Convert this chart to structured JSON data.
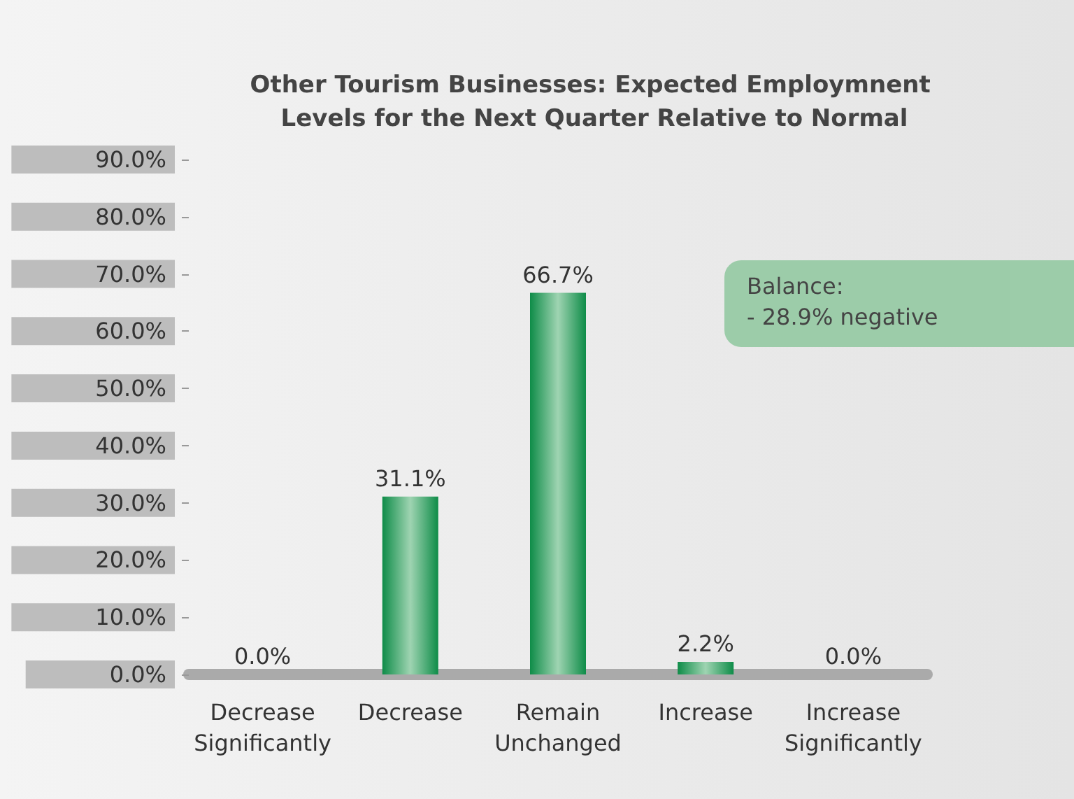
{
  "chart_data": {
    "type": "bar",
    "title": "Other Tourism Businesses: Expected Employmnent Levels for the Next Quarter Relative to Normal",
    "categories": [
      "Decrease Significantly",
      "Decrease",
      "Remain Unchanged",
      "Increase",
      "Increase Significantly"
    ],
    "values": [
      0,
      31.1,
      66.7,
      2.2,
      0
    ],
    "value_labels": [
      "0.0%",
      "31.1%",
      "66.7%",
      "2.2%",
      "0.0%"
    ],
    "color": "#0e8c48",
    "ylim": [
      0,
      90
    ],
    "yticks": [
      {
        "value": 0,
        "label": "0.0%"
      },
      {
        "value": 10,
        "label": "10.0%"
      },
      {
        "value": 20,
        "label": "20.0%"
      },
      {
        "value": 30,
        "label": "30.0%"
      },
      {
        "value": 40,
        "label": "40.0%"
      },
      {
        "value": 50,
        "label": "50.0%"
      },
      {
        "value": 60,
        "label": "60.0%"
      },
      {
        "value": 70,
        "label": "70.0%"
      },
      {
        "value": 80,
        "label": "80.0%"
      },
      {
        "value": 90,
        "label": "90.0%"
      }
    ],
    "annotations": [
      "Balance:\n- 28.9% negative"
    ],
    "grid": false
  }
}
